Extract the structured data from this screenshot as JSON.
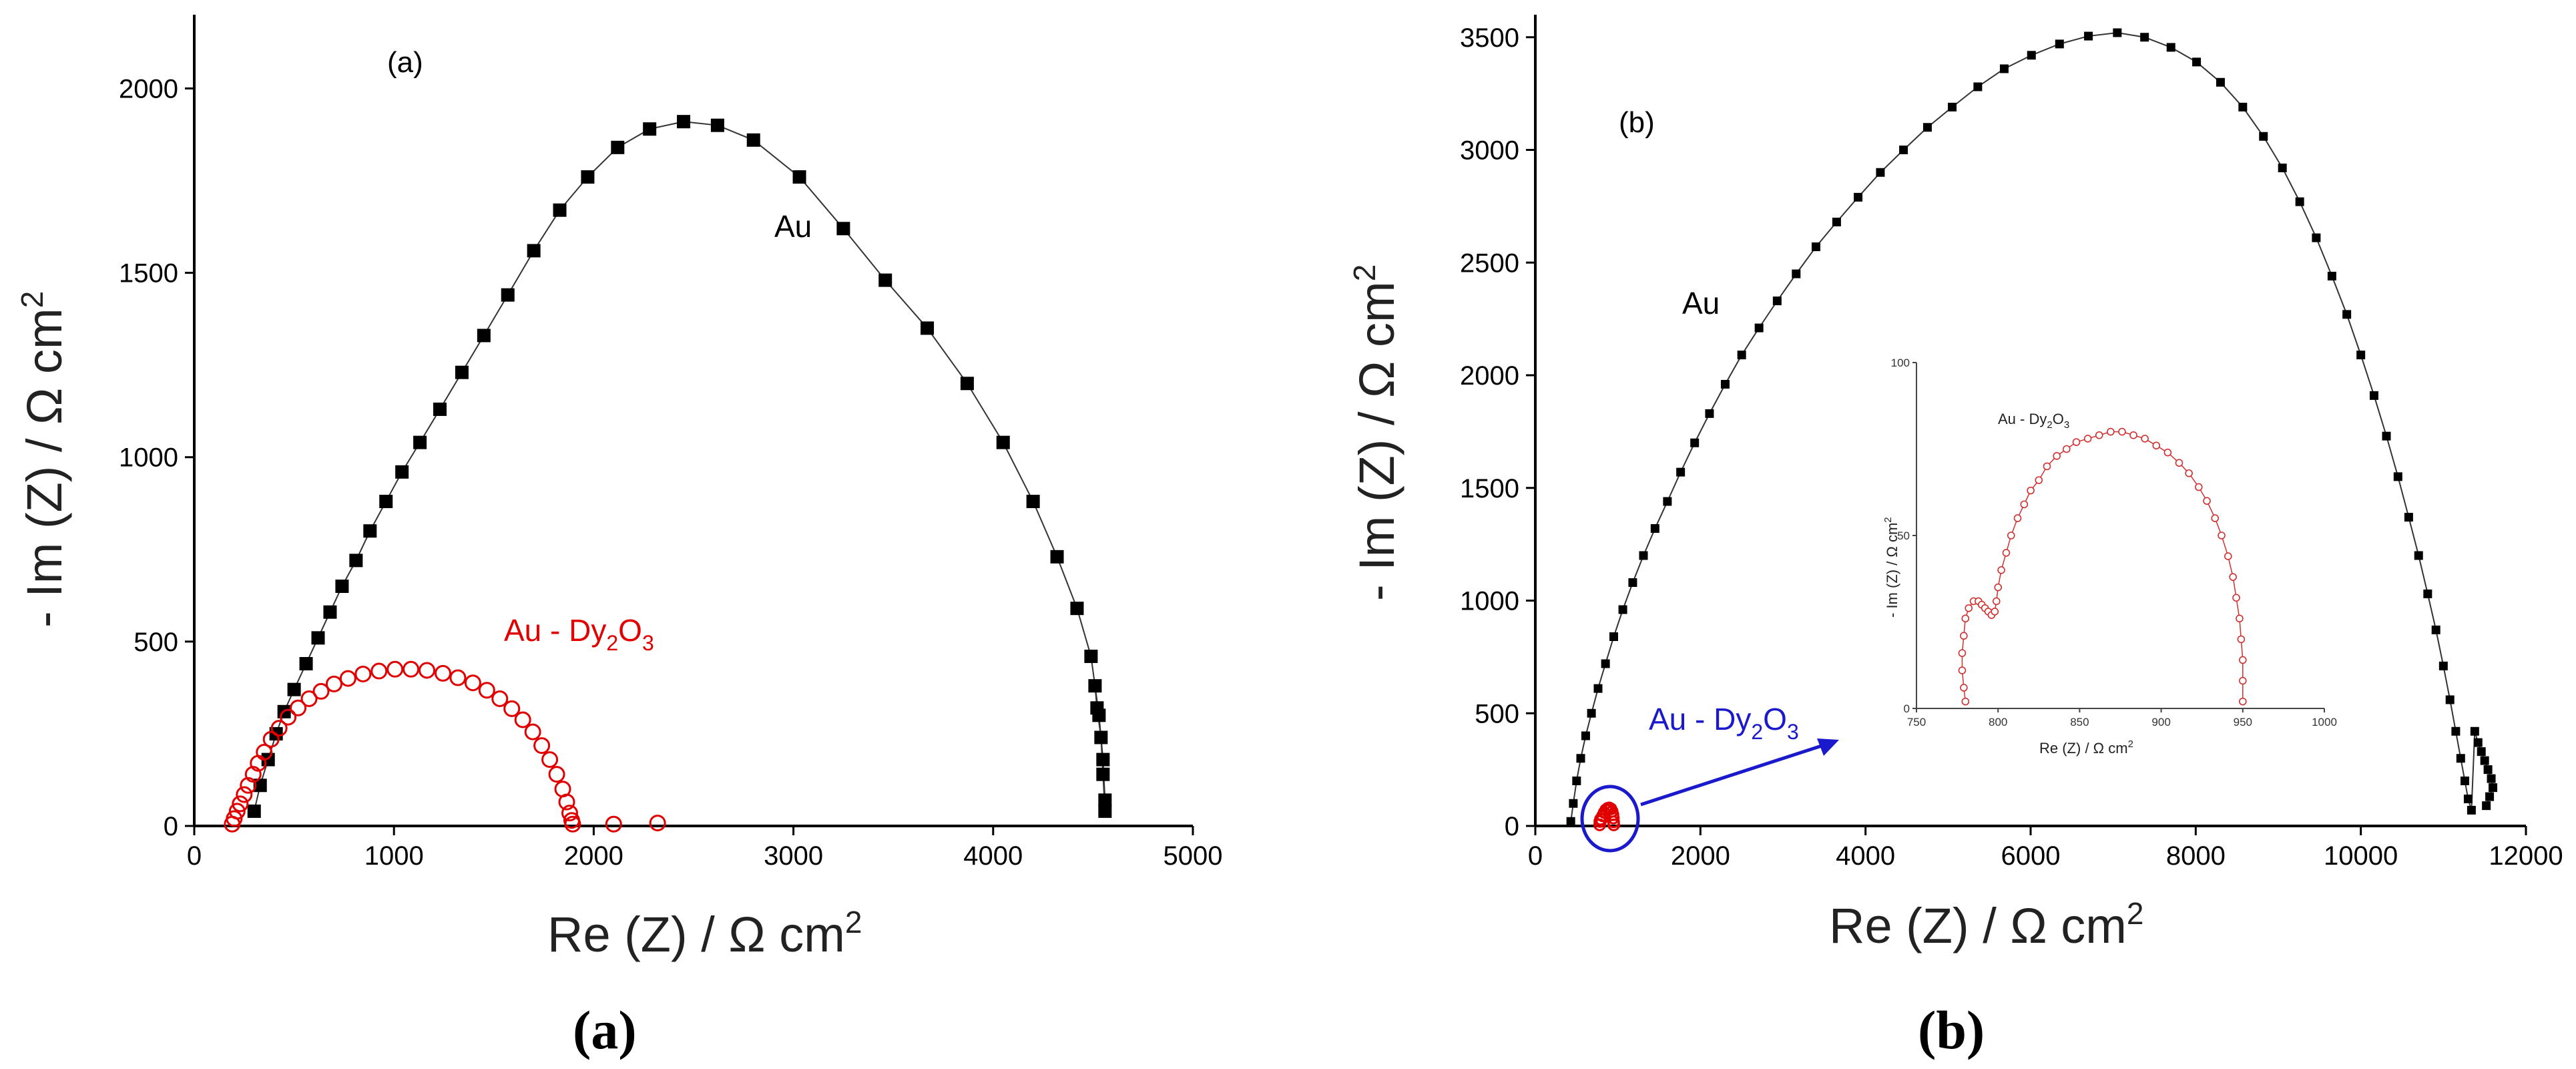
{
  "chart_data": [
    {
      "type": "scatter",
      "panel_label": "(a)",
      "caption": "a",
      "xlabel": "Re (Z) / Ω cm",
      "xlabel_sup": "2",
      "ylabel": "- Im (Z) / Ω cm",
      "ylabel_sup": "2",
      "xlim": [
        0,
        5000
      ],
      "ylim": [
        0,
        2200
      ],
      "xticks": [
        0,
        1000,
        2000,
        3000,
        4000,
        5000
      ],
      "yticks": [
        0,
        500,
        1000,
        1500,
        2000
      ],
      "series": [
        {
          "name": "Au",
          "color": "#000000",
          "marker": "filled-square",
          "x": [
            300,
            330,
            370,
            410,
            450,
            500,
            560,
            620,
            680,
            740,
            810,
            880,
            960,
            1040,
            1130,
            1230,
            1340,
            1450,
            1570,
            1700,
            1830,
            1970,
            2120,
            2280,
            2450,
            2620,
            2800,
            3030,
            3250,
            3460,
            3670,
            3870,
            4050,
            4200,
            4320,
            4420,
            4490,
            4530,
            4550,
            4560,
            4560,
            4550,
            4540,
            4520,
            4510
          ],
          "y": [
            40,
            110,
            180,
            250,
            310,
            370,
            440,
            510,
            580,
            650,
            720,
            800,
            880,
            960,
            1040,
            1130,
            1230,
            1330,
            1440,
            1560,
            1670,
            1760,
            1840,
            1890,
            1910,
            1900,
            1860,
            1760,
            1620,
            1480,
            1350,
            1200,
            1040,
            880,
            730,
            590,
            460,
            300,
            180,
            70,
            40,
            140,
            240,
            320,
            380
          ]
        },
        {
          "name": "Au - Dy2O3",
          "label_main": "Au - Dy",
          "label_sub1": "2",
          "label_mid": "O",
          "label_sub2": "3",
          "color": "#e00000",
          "marker": "open-circle",
          "x": [
            190,
            200,
            215,
            230,
            250,
            270,
            295,
            320,
            350,
            385,
            425,
            470,
            520,
            575,
            635,
            700,
            770,
            845,
            925,
            1005,
            1085,
            1165,
            1245,
            1320,
            1395,
            1465,
            1530,
            1590,
            1645,
            1695,
            1740,
            1780,
            1815,
            1845,
            1865,
            1880,
            1890,
            1895,
            2100,
            2320
          ],
          "y": [
            5,
            20,
            40,
            60,
            85,
            110,
            140,
            170,
            200,
            235,
            265,
            295,
            320,
            345,
            365,
            385,
            400,
            412,
            420,
            425,
            425,
            422,
            414,
            402,
            388,
            368,
            345,
            318,
            288,
            255,
            218,
            180,
            140,
            100,
            65,
            35,
            15,
            5,
            5,
            8
          ]
        }
      ]
    },
    {
      "type": "scatter",
      "panel_label": "(b)",
      "caption": "b",
      "xlabel": "Re (Z) / Ω cm",
      "xlabel_sup": "2",
      "ylabel": "- Im (Z) / Ω cm",
      "ylabel_sup": "2",
      "xlim": [
        0,
        12000
      ],
      "ylim": [
        0,
        3600
      ],
      "xticks": [
        0,
        2000,
        4000,
        6000,
        8000,
        10000,
        12000
      ],
      "yticks": [
        0,
        500,
        1000,
        1500,
        2000,
        2500,
        3000,
        3500
      ],
      "series": [
        {
          "name": "Au",
          "color": "#000000",
          "marker": "filled-square",
          "x": [
            430,
            460,
            500,
            550,
            610,
            680,
            760,
            850,
            950,
            1060,
            1180,
            1310,
            1450,
            1600,
            1760,
            1930,
            2110,
            2300,
            2500,
            2710,
            2930,
            3160,
            3400,
            3650,
            3910,
            4180,
            4460,
            4750,
            5050,
            5360,
            5680,
            6010,
            6350,
            6700,
            7050,
            7380,
            7700,
            8010,
            8300,
            8570,
            8820,
            9050,
            9260,
            9460,
            9650,
            9830,
            10000,
            10160,
            10310,
            10450,
            10580,
            10700,
            10810,
            10910,
            11000,
            11080,
            11150,
            11210,
            11260,
            11300,
            11340,
            11380,
            11420,
            11460,
            11500,
            11540,
            11580,
            11600,
            11560,
            11520
          ],
          "y": [
            20,
            100,
            200,
            300,
            400,
            500,
            610,
            720,
            840,
            960,
            1080,
            1200,
            1320,
            1440,
            1570,
            1700,
            1830,
            1960,
            2090,
            2210,
            2330,
            2450,
            2570,
            2680,
            2790,
            2900,
            3000,
            3100,
            3190,
            3280,
            3360,
            3420,
            3470,
            3505,
            3520,
            3500,
            3455,
            3390,
            3300,
            3190,
            3060,
            2920,
            2770,
            2610,
            2440,
            2270,
            2090,
            1910,
            1730,
            1550,
            1370,
            1200,
            1030,
            870,
            710,
            560,
            420,
            300,
            200,
            120,
            70,
            420,
            370,
            330,
            290,
            250,
            210,
            170,
            130,
            90
          ]
        },
        {
          "name": "Au - Dy2O3",
          "label_main": "Au - Dy",
          "label_sub1": "2",
          "label_mid": "O",
          "label_sub2": "3",
          "color": "#e00000",
          "marker": "open-circle",
          "x": [
            780,
            782,
            790,
            800,
            815,
            835,
            855,
            875,
            895,
            915,
            930,
            940,
            945,
            948,
            950
          ],
          "y": [
            5,
            20,
            30,
            28,
            45,
            60,
            72,
            78,
            80,
            76,
            65,
            50,
            35,
            18,
            5
          ]
        }
      ],
      "inset": {
        "title_main": "Au - Dy",
        "title_sub1": "2",
        "title_mid": "O",
        "title_sub2": "3",
        "xlabel": "Re (Z) / Ω cm",
        "xlabel_sup": "2",
        "ylabel": "- Im (Z) / Ω cm",
        "ylabel_sup": "2",
        "xlim": [
          750,
          1000
        ],
        "ylim": [
          0,
          100
        ],
        "xticks": [
          750,
          800,
          850,
          900,
          950,
          1000
        ],
        "yticks": [
          0,
          50,
          100
        ],
        "color": "#d03030",
        "x": [
          780,
          779,
          778,
          778,
          779,
          780,
          782,
          785,
          788,
          790,
          792,
          794,
          796,
          798,
          799,
          800,
          802,
          805,
          808,
          812,
          816,
          820,
          825,
          830,
          836,
          842,
          848,
          855,
          862,
          869,
          876,
          883,
          890,
          897,
          904,
          911,
          917,
          923,
          928,
          933,
          937,
          941,
          944,
          946,
          948,
          949,
          950,
          950,
          950
        ],
        "y": [
          2,
          6,
          11,
          16,
          21,
          26,
          29,
          31,
          31,
          30,
          29,
          28,
          27,
          28,
          31,
          35,
          40,
          45,
          50,
          55,
          59,
          63,
          66,
          70,
          73,
          75,
          77,
          78,
          79,
          80,
          80,
          79,
          78,
          76,
          74,
          71,
          68,
          64,
          60,
          55,
          50,
          44,
          38,
          32,
          26,
          20,
          14,
          8,
          2
        ]
      }
    }
  ]
}
